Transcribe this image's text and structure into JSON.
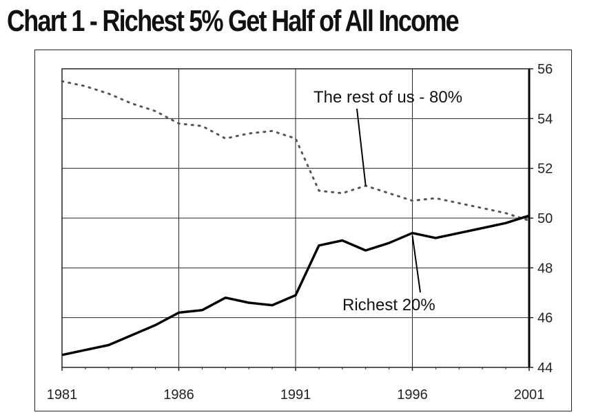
{
  "title": "Chart 1 - Richest 5% Get Half of All Income",
  "chart_data": {
    "type": "line",
    "title": "Chart 1 - Richest 5% Get Half of All Income",
    "xlim": [
      1981,
      2001
    ],
    "ylim": [
      44,
      56
    ],
    "x_ticks": [
      "1981",
      "1986",
      "1991",
      "1996",
      "2001"
    ],
    "y_ticks": [
      "44",
      "46",
      "48",
      "50",
      "52",
      "54",
      "56"
    ],
    "y_axis_side": "right",
    "grid": true,
    "series": [
      {
        "name": "The rest of us - 80%",
        "style": "dotted",
        "color": "#555555",
        "x": [
          1981,
          1982,
          1983,
          1984,
          1985,
          1986,
          1987,
          1988,
          1989,
          1990,
          1991,
          1992,
          1993,
          1994,
          1995,
          1996,
          1997,
          1998,
          1999,
          2000,
          2001
        ],
        "y": [
          55.5,
          55.3,
          55.0,
          54.6,
          54.3,
          53.8,
          53.7,
          53.2,
          53.4,
          53.5,
          53.2,
          51.1,
          51.0,
          51.3,
          51.0,
          50.7,
          50.8,
          50.6,
          50.4,
          50.2,
          49.9
        ]
      },
      {
        "name": "Richest 20%",
        "style": "solid",
        "color": "#000000",
        "x": [
          1981,
          1982,
          1983,
          1984,
          1985,
          1986,
          1987,
          1988,
          1989,
          1990,
          1991,
          1992,
          1993,
          1994,
          1995,
          1996,
          1997,
          1998,
          1999,
          2000,
          2001
        ],
        "y": [
          44.5,
          44.7,
          44.9,
          45.3,
          45.7,
          46.2,
          46.3,
          46.8,
          46.6,
          46.5,
          46.9,
          48.9,
          49.1,
          48.7,
          49.0,
          49.4,
          49.2,
          49.4,
          49.6,
          49.8,
          50.1
        ]
      }
    ],
    "annotations": [
      {
        "text": "The rest of us - 80%",
        "series": "The rest of us - 80%",
        "x": 1994,
        "y": 51.3
      },
      {
        "text": "Richest 20%",
        "series": "Richest 20%",
        "x": 1996,
        "y": 49.3
      }
    ]
  }
}
